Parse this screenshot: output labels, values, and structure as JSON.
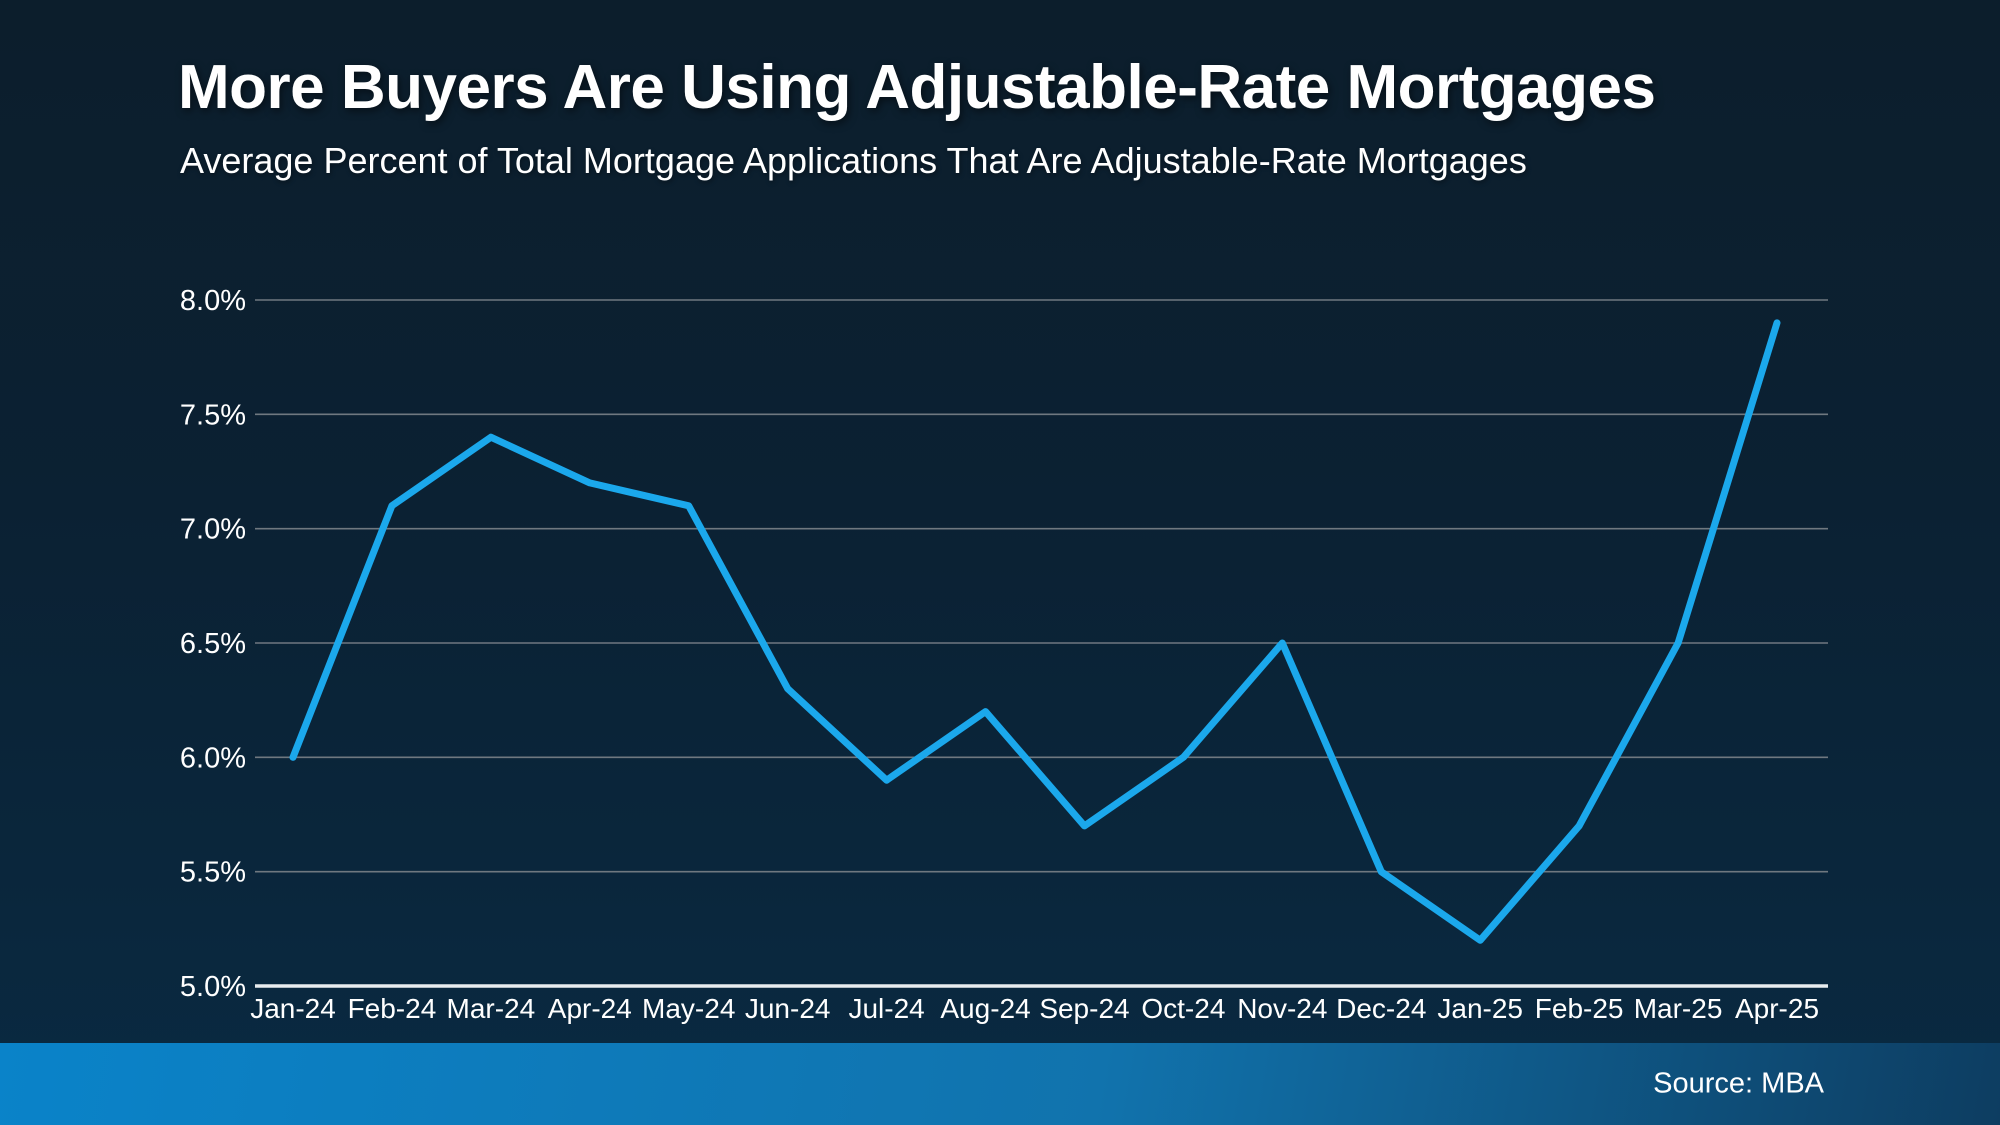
{
  "header": {
    "title": "More Buyers Are Using Adjustable-Rate Mortgages",
    "subtitle": "Average Percent of Total Mortgage Applications That Are Adjustable-Rate Mortgages"
  },
  "footer": {
    "source": "Source: MBA"
  },
  "chart_data": {
    "type": "line",
    "title": "More Buyers Are Using Adjustable-Rate Mortgages",
    "subtitle": "Average Percent of Total Mortgage Applications That Are Adjustable-Rate Mortgages",
    "categories": [
      "Jan-24",
      "Feb-24",
      "Mar-24",
      "Apr-24",
      "May-24",
      "Jun-24",
      "Jul-24",
      "Aug-24",
      "Sep-24",
      "Oct-24",
      "Nov-24",
      "Dec-24",
      "Jan-25",
      "Feb-25",
      "Mar-25",
      "Apr-25"
    ],
    "values": [
      6.0,
      7.1,
      7.4,
      7.2,
      7.1,
      6.3,
      5.9,
      6.2,
      5.7,
      6.0,
      6.5,
      5.5,
      5.2,
      5.7,
      6.5,
      7.9
    ],
    "xlabel": "",
    "ylabel": "",
    "ylim": [
      5.0,
      8.0
    ],
    "ytick_step": 0.5,
    "ytick_suffix": "%",
    "grid": true,
    "legend_position": "none",
    "source_label": "Source: MBA",
    "colors": {
      "line": "#1BA8EC",
      "gridline": "#6F7880",
      "axis_line": "#E9EDEF",
      "text": "#FFFFFF",
      "background_top": "#0C1E2C",
      "background_mid": "#0B2133",
      "background_bottom": "#092A42",
      "footer_left": "#0A83C9",
      "footer_mid": "#1173AD",
      "footer_right": "#0D3D61"
    }
  }
}
